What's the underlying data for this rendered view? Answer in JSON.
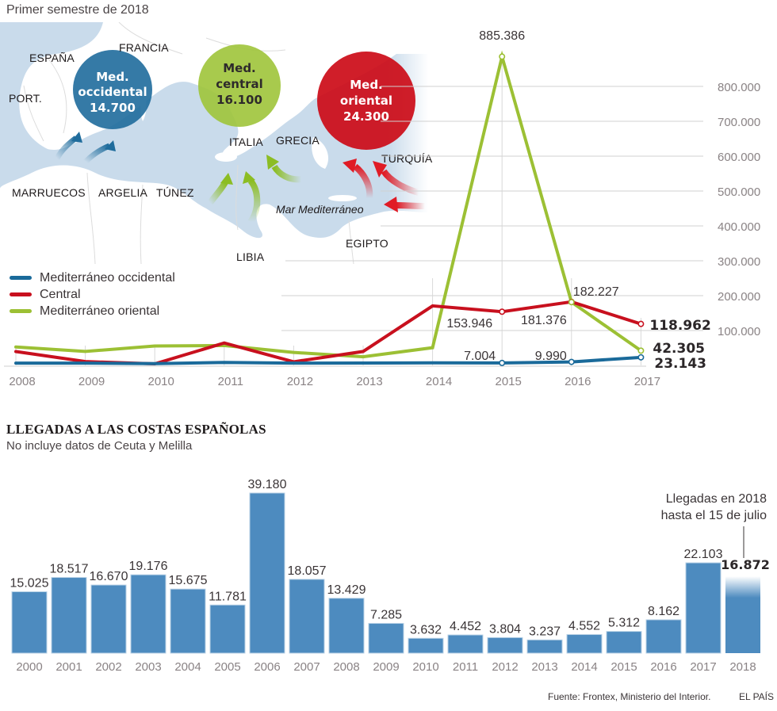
{
  "header": {
    "subtitle": "Primer semestre de 2018"
  },
  "map": {
    "countries": [
      {
        "name": "ESPAÑA"
      },
      {
        "name": "FRANCIA"
      },
      {
        "name": "PORT."
      },
      {
        "name": "ITALIA"
      },
      {
        "name": "GRECIA"
      },
      {
        "name": "TURQUÍA"
      },
      {
        "name": "MARRUECOS"
      },
      {
        "name": "ARGELIA"
      },
      {
        "name": "TÚNEZ"
      },
      {
        "name": "LIBIA"
      },
      {
        "name": "EGIPTO"
      }
    ],
    "sea_label": "Mar Mediterráneo",
    "bubbles": [
      {
        "line1": "Med.",
        "line2": "occidental",
        "value": "14.700",
        "color": "#1f6c9c",
        "text_color": "#ffffff"
      },
      {
        "line1": "Med.",
        "line2": "central",
        "value": "16.100",
        "color": "#9fc43a",
        "text_color": "#2e2a2b"
      },
      {
        "line1": "Med.",
        "line2": "oriental",
        "value": "24.300",
        "color": "#cc0b17",
        "text_color": "#ffffff"
      }
    ]
  },
  "chart_data": [
    {
      "type": "line",
      "title": "Primer semestre de 2018",
      "x": [
        2008,
        2009,
        2010,
        2011,
        2012,
        2013,
        2014,
        2015,
        2016,
        2017
      ],
      "x_tick_labels": [
        "2008",
        "2009",
        "2010",
        "2011",
        "2012",
        "2013",
        "2014",
        "2015",
        "2016",
        "2017"
      ],
      "ylim": [
        0,
        900000
      ],
      "y_ticks": [
        100000,
        200000,
        300000,
        400000,
        500000,
        600000,
        700000,
        800000
      ],
      "y_tick_labels": [
        "100.000",
        "200.000",
        "300.000",
        "400.000",
        "500.000",
        "600.000",
        "700.000",
        "800.000"
      ],
      "y_axis_side": "right",
      "grid": true,
      "legend_position": "left",
      "series": [
        {
          "name": "Mediterráneo occidental",
          "color": "#1a6a9a",
          "values": [
            6500,
            6600,
            5000,
            8400,
            6400,
            6800,
            7300,
            7004,
            9990,
            23143
          ]
        },
        {
          "name": "Central",
          "color": "#c8101e",
          "values": [
            39800,
            11000,
            4500,
            64300,
            10400,
            40000,
            170700,
            153946,
            182227,
            118962
          ]
        },
        {
          "name": "Mediterráneo oriental",
          "color": "#9cc034",
          "values": [
            52800,
            40000,
            55700,
            57000,
            37200,
            24800,
            50800,
            885386,
            181376,
            42305
          ]
        }
      ],
      "data_labels": [
        {
          "series": 2,
          "x": 2015,
          "text": "885.386",
          "bold": false
        },
        {
          "series": 1,
          "x": 2015,
          "text": "153.946",
          "bold": false
        },
        {
          "series": 0,
          "x": 2015,
          "text": "7.004",
          "bold": false
        },
        {
          "series": 1,
          "x": 2016,
          "text": "182.227",
          "bold": false
        },
        {
          "series": 2,
          "x": 2016,
          "text": "181.376",
          "bold": false
        },
        {
          "series": 0,
          "x": 2016,
          "text": "9.990",
          "bold": false
        },
        {
          "series": 1,
          "x": 2017,
          "text": "118.962",
          "bold": true
        },
        {
          "series": 2,
          "x": 2017,
          "text": "42.305",
          "bold": true
        },
        {
          "series": 0,
          "x": 2017,
          "text": "23.143",
          "bold": true
        }
      ]
    },
    {
      "type": "bar",
      "title": "LLEGADAS A LAS COSTAS ESPAÑOLAS",
      "subtitle": "No incluye datos de Ceuta y Melilla",
      "categories": [
        "2000",
        "2001",
        "2002",
        "2003",
        "2004",
        "2005",
        "2006",
        "2007",
        "2008",
        "2009",
        "2010",
        "2011",
        "2012",
        "2013",
        "2014",
        "2015",
        "2016",
        "2017",
        "2018"
      ],
      "values": [
        15025,
        18517,
        16670,
        19176,
        15675,
        11781,
        39180,
        18057,
        13429,
        7285,
        3632,
        4452,
        3804,
        3237,
        4552,
        5312,
        8162,
        22103,
        16872
      ],
      "value_labels": [
        "15.025",
        "18.517",
        "16.670",
        "19.176",
        "15.675",
        "11.781",
        "39.180",
        "18.057",
        "13.429",
        "7.285",
        "3.632",
        "4.452",
        "3.804",
        "3.237",
        "4.552",
        "5.312",
        "8.162",
        "22.103",
        "16.872"
      ],
      "bar_color": "#4d8bbf",
      "annotation": {
        "category": "2018",
        "line1": "Llegadas en 2018",
        "line2": "hasta el 15 de julio"
      },
      "ylim": [
        0,
        40000
      ],
      "grid": false
    }
  ],
  "bar_section": {
    "title": "LLEGADAS A LAS COSTAS ESPAÑOLAS",
    "subtitle": "No incluye datos de Ceuta y Melilla"
  },
  "footer": {
    "source": "Fuente: Frontex, Ministerio del Interior.",
    "brand": "EL PAÍS"
  }
}
